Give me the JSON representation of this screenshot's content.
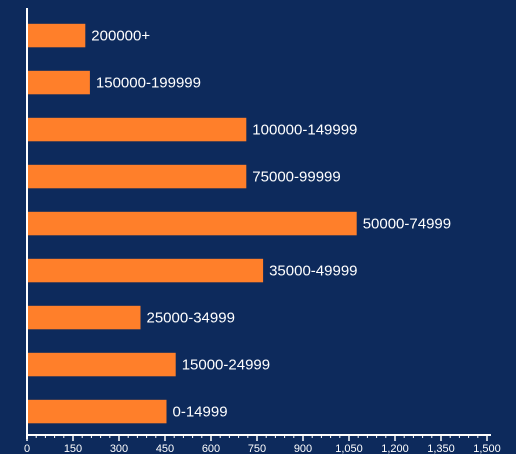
{
  "chart_data": {
    "type": "bar",
    "orientation": "horizontal",
    "title": "",
    "xlabel": "",
    "ylabel": "",
    "categories": [
      "200000+",
      "150000-199999",
      "100000-149999",
      "75000-99999",
      "50000-74999",
      "35000-49999",
      "25000-34999",
      "15000-24999",
      "0-14999"
    ],
    "values": [
      190,
      205,
      715,
      715,
      1075,
      770,
      370,
      485,
      455
    ],
    "xlim": [
      0,
      1500
    ],
    "xticks": [
      "0",
      "150",
      "300",
      "450",
      "600",
      "750",
      "900",
      "1,050",
      "1,200",
      "1,350",
      "1,500"
    ],
    "grid": false,
    "legend": "none",
    "colors": {
      "bar": "#ff7f2a",
      "background": "#0d2a5c",
      "axis": "#ffffff",
      "text": "#ffffff"
    }
  }
}
